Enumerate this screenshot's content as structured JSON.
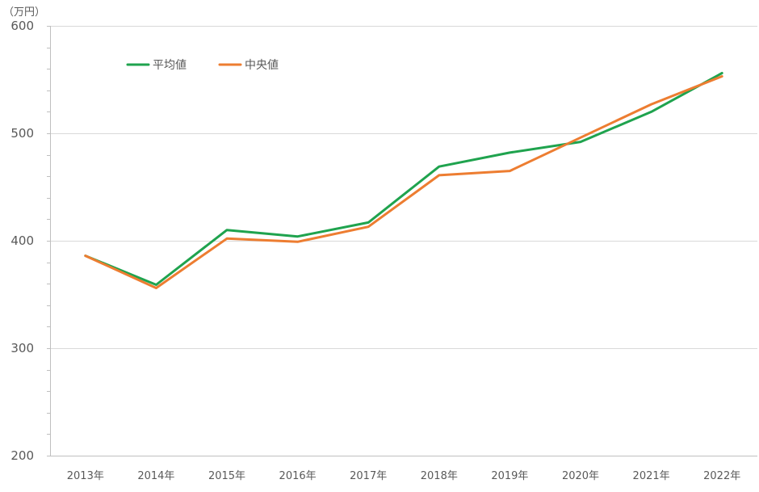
{
  "chart_data": {
    "type": "line",
    "y_unit": "（万円）",
    "categories": [
      "2013年",
      "2014年",
      "2015年",
      "2016年",
      "2017年",
      "2018年",
      "2019年",
      "2020年",
      "2021年",
      "2022年"
    ],
    "series": [
      {
        "name": "平均値",
        "color": "#1FA34E",
        "values": [
          386,
          359,
          410,
          404,
          417,
          469,
          482,
          492,
          520,
          556
        ]
      },
      {
        "name": "中央値",
        "color": "#ED7D31",
        "values": [
          386,
          356,
          402,
          399,
          413,
          461,
          465,
          496,
          527,
          553
        ]
      }
    ],
    "ylim": [
      200,
      600
    ],
    "yticks": [
      200,
      300,
      400,
      500,
      600
    ],
    "grid": true,
    "legend": "top-left"
  }
}
